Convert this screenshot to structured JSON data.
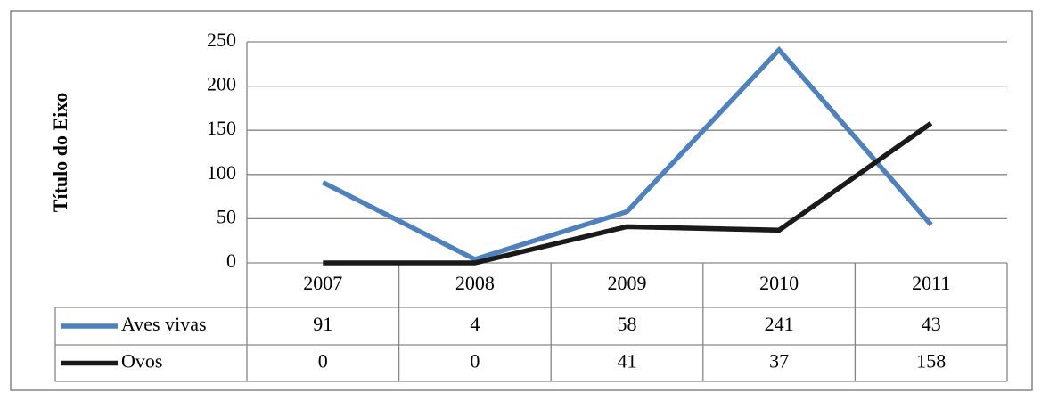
{
  "chart_data": {
    "type": "line",
    "y_label": "Título do Eixo",
    "categories": [
      "2007",
      "2008",
      "2009",
      "2010",
      "2011"
    ],
    "series": [
      {
        "name": "Aves vivas",
        "color": "#4f81bd",
        "values": [
          91,
          4,
          58,
          241,
          43
        ]
      },
      {
        "name": "Ovos",
        "color": "#1a1a1a",
        "values": [
          0,
          0,
          41,
          37,
          158
        ]
      }
    ],
    "ylim": [
      0,
      250
    ],
    "yticks": [
      0,
      50,
      100,
      150,
      200,
      250
    ],
    "grid": true,
    "data_table": true
  }
}
